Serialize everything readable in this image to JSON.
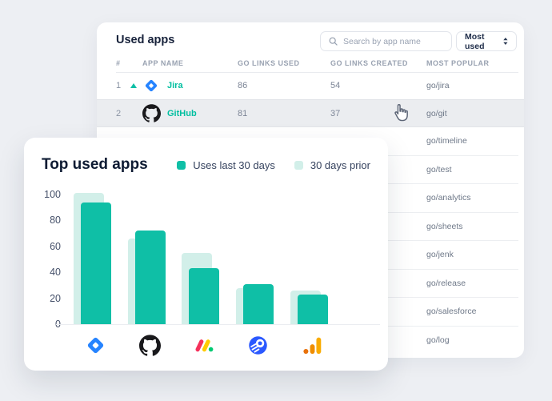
{
  "table_card": {
    "title": "Used apps",
    "search_placeholder": "Search by app name",
    "sort_label": "Most used",
    "columns": [
      "#",
      "APP NAME",
      "GO LINKS USED",
      "GO LINKS CREATED",
      "MOST POPULAR"
    ],
    "rows": [
      {
        "rank": "1",
        "app": "Jira",
        "trend": "up",
        "go_links_used": "86",
        "go_links_created": "54",
        "most_popular": "go/jira"
      },
      {
        "rank": "2",
        "app": "GitHub",
        "highlighted": true,
        "go_links_used": "81",
        "go_links_created": "37",
        "most_popular": "go/git"
      }
    ],
    "more_popular_links": [
      "go/timeline",
      "go/test",
      "go/analytics",
      "go/sheets",
      "go/jenk",
      "go/release",
      "go/salesforce",
      "go/log"
    ]
  },
  "chart_card": {
    "title": "Top used apps",
    "legend": [
      {
        "label": "Uses last 30 days",
        "color": "#0fbfa6"
      },
      {
        "label": "30 days prior",
        "color": "#d2efe9"
      }
    ]
  },
  "chart_data": {
    "type": "bar",
    "title": "Top used apps",
    "categories": [
      "Jira",
      "GitHub",
      "monday.com",
      "Rocket",
      "Google Analytics"
    ],
    "series": [
      {
        "name": "Uses last 30 days",
        "values": [
          94,
          72,
          43,
          31,
          23
        ],
        "color": "#0fbfa6"
      },
      {
        "name": "30 days prior",
        "values": [
          101,
          66,
          55,
          28,
          26
        ],
        "color": "#d2efe9"
      }
    ],
    "ylim": [
      0,
      100
    ],
    "yticks": [
      0,
      20,
      40,
      60,
      80,
      100
    ],
    "grid": false,
    "legend_position": "top-right"
  },
  "icons": {
    "search": "magnifier-icon",
    "sort": "up-down-caret-icon",
    "row1_trend": "triangle-up-icon",
    "cursor": "hand-pointer-icon",
    "apps": [
      "jira-icon",
      "github-icon",
      "monday-icon",
      "rocket-icon",
      "google-analytics-icon"
    ]
  },
  "colors": {
    "accent_teal": "#0fbfa6",
    "light_teal": "#d2efe9",
    "row_highlight": "#ebedf0",
    "background": "#edeff3"
  }
}
